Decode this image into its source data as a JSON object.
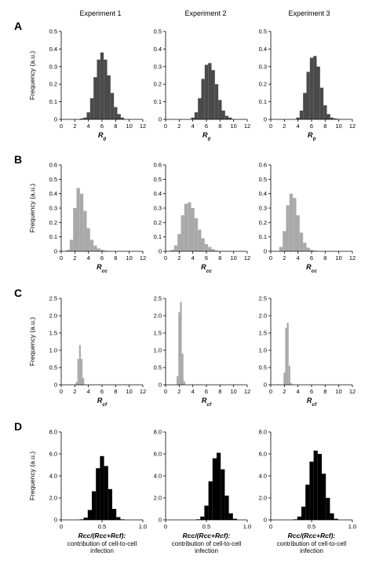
{
  "column_titles": [
    "Experiment 1",
    "Experiment 2",
    "Experiment 3"
  ],
  "colors": {
    "dark_gray": "#4a4a4a",
    "light_gray": "#a9a9a9",
    "black": "#000000",
    "axis": "#000000"
  },
  "rows": [
    {
      "label": "A",
      "ylabel": "Frequency (a.u.)",
      "xlabel_main": "R",
      "xlabel_sub": "0",
      "xlim": [
        0,
        12
      ],
      "ylim": [
        0,
        0.5
      ],
      "xticks": [
        "0",
        "2",
        "4",
        "6",
        "8",
        "10",
        "12"
      ],
      "yticks": [
        "0",
        "0.1",
        "0.2",
        "0.3",
        "0.4",
        "0.5"
      ],
      "color": "dark_gray"
    },
    {
      "label": "B",
      "ylabel": "Frequency (a.u.)",
      "xlabel_main": "R",
      "xlabel_sub": "cc",
      "xlim": [
        0,
        12
      ],
      "ylim": [
        0,
        0.6
      ],
      "xticks": [
        "0",
        "2",
        "4",
        "6",
        "8",
        "10",
        "12"
      ],
      "yticks": [
        "0",
        "0.1",
        "0.2",
        "0.3",
        "0.4",
        "0.5",
        "0.6"
      ],
      "color": "light_gray"
    },
    {
      "label": "C",
      "ylabel": "Frequency (a.u.)",
      "xlabel_main": "R",
      "xlabel_sub": "cf",
      "xlim": [
        0,
        12
      ],
      "ylim": [
        0,
        2.5
      ],
      "xticks": [
        "0",
        "2",
        "4",
        "6",
        "8",
        "10",
        "12"
      ],
      "yticks": [
        "0",
        "0.5",
        "1.0",
        "1.5",
        "2.0",
        "2.5"
      ],
      "color": "light_gray"
    },
    {
      "label": "D",
      "ylabel": "Frequency (a.u.)",
      "xlabel_main": "Rcc/(Rcc+Rcf):",
      "xlabel_line2": "contribution of cell-to-cell",
      "xlabel_line3": "infection",
      "xlim": [
        0,
        1
      ],
      "ylim": [
        0,
        8
      ],
      "xticks": [
        "0",
        "0.5",
        "1.0"
      ],
      "yticks": [
        "0",
        "2.0",
        "4.0",
        "6.0",
        "8.0"
      ],
      "color": "black"
    }
  ],
  "chart_data": [
    {
      "type": "bar",
      "row": "A",
      "experiment": "Experiment 1",
      "x": [
        2.5,
        3.0,
        3.5,
        4.0,
        4.5,
        5.0,
        5.5,
        6.0,
        6.5,
        7.0,
        7.5,
        8.0,
        8.5,
        9.0,
        9.5
      ],
      "values": [
        0.0,
        0.005,
        0.01,
        0.04,
        0.12,
        0.24,
        0.34,
        0.38,
        0.34,
        0.25,
        0.15,
        0.07,
        0.03,
        0.01,
        0.0
      ]
    },
    {
      "type": "bar",
      "row": "A",
      "experiment": "Experiment 2",
      "x": [
        3.5,
        4.0,
        4.5,
        5.0,
        5.5,
        6.0,
        6.5,
        7.0,
        7.5,
        8.0,
        8.5,
        9.0,
        9.5,
        10.0
      ],
      "values": [
        0.0,
        0.01,
        0.04,
        0.12,
        0.23,
        0.31,
        0.32,
        0.28,
        0.2,
        0.11,
        0.05,
        0.02,
        0.01,
        0.0
      ]
    },
    {
      "type": "bar",
      "row": "A",
      "experiment": "Experiment 3",
      "x": [
        3.5,
        4.0,
        4.5,
        5.0,
        5.5,
        6.0,
        6.5,
        7.0,
        7.5,
        8.0,
        8.5,
        9.0,
        9.5,
        10.0
      ],
      "values": [
        0.0,
        0.01,
        0.05,
        0.15,
        0.27,
        0.35,
        0.36,
        0.3,
        0.18,
        0.08,
        0.03,
        0.01,
        0.005,
        0.0
      ]
    },
    {
      "type": "bar",
      "row": "B",
      "experiment": "Experiment 1",
      "x": [
        0.5,
        1.0,
        1.5,
        2.0,
        2.5,
        3.0,
        3.5,
        4.0,
        4.5,
        5.0,
        5.5,
        6.0,
        6.5,
        7.0
      ],
      "values": [
        0.0,
        0.01,
        0.08,
        0.3,
        0.44,
        0.4,
        0.28,
        0.16,
        0.08,
        0.04,
        0.02,
        0.01,
        0.005,
        0.0
      ]
    },
    {
      "type": "bar",
      "row": "B",
      "experiment": "Experiment 2",
      "x": [
        0.5,
        1.0,
        1.5,
        2.0,
        2.5,
        3.0,
        3.5,
        4.0,
        4.5,
        5.0,
        5.5,
        6.0,
        6.5,
        7.0,
        7.5,
        8.0
      ],
      "values": [
        0.0,
        0.01,
        0.04,
        0.12,
        0.25,
        0.33,
        0.34,
        0.3,
        0.23,
        0.15,
        0.09,
        0.05,
        0.03,
        0.015,
        0.005,
        0.0
      ]
    },
    {
      "type": "bar",
      "row": "B",
      "experiment": "Experiment 3",
      "x": [
        1.0,
        1.5,
        2.0,
        2.5,
        3.0,
        3.5,
        4.0,
        4.5,
        5.0,
        5.5,
        6.0,
        6.5,
        7.0
      ],
      "values": [
        0.0,
        0.03,
        0.14,
        0.32,
        0.4,
        0.37,
        0.25,
        0.13,
        0.06,
        0.025,
        0.01,
        0.005,
        0.0
      ]
    },
    {
      "type": "bar",
      "row": "C",
      "experiment": "Experiment 1",
      "x": [
        2.0,
        2.25,
        2.5,
        2.75,
        3.0,
        3.25,
        3.5
      ],
      "values": [
        0.0,
        0.08,
        0.75,
        1.15,
        0.75,
        0.2,
        0.0
      ]
    },
    {
      "type": "bar",
      "row": "C",
      "experiment": "Experiment 2",
      "x": [
        1.5,
        1.75,
        2.0,
        2.25,
        2.5,
        2.75,
        3.0
      ],
      "values": [
        0.0,
        0.25,
        2.1,
        2.4,
        0.9,
        0.1,
        0.0
      ]
    },
    {
      "type": "bar",
      "row": "C",
      "experiment": "Experiment 3",
      "x": [
        1.75,
        2.0,
        2.25,
        2.5,
        2.75,
        3.0,
        3.25
      ],
      "values": [
        0.0,
        0.35,
        1.65,
        1.8,
        0.55,
        0.05,
        0.0
      ]
    },
    {
      "type": "bar",
      "row": "D",
      "experiment": "Experiment 1",
      "x": [
        0.25,
        0.3,
        0.35,
        0.4,
        0.45,
        0.5,
        0.55,
        0.6,
        0.65,
        0.7,
        0.75
      ],
      "values": [
        0.05,
        0.2,
        0.9,
        2.6,
        4.7,
        5.8,
        4.9,
        2.8,
        1.0,
        0.25,
        0.05
      ]
    },
    {
      "type": "bar",
      "row": "D",
      "experiment": "Experiment 2",
      "x": [
        0.4,
        0.45,
        0.5,
        0.55,
        0.6,
        0.65,
        0.7,
        0.75,
        0.8,
        0.85
      ],
      "values": [
        0.05,
        0.3,
        1.3,
        3.5,
        5.6,
        6.1,
        4.6,
        2.2,
        0.6,
        0.1
      ]
    },
    {
      "type": "bar",
      "row": "D",
      "experiment": "Experiment 3",
      "x": [
        0.3,
        0.35,
        0.4,
        0.45,
        0.5,
        0.55,
        0.6,
        0.65,
        0.7,
        0.75,
        0.8
      ],
      "values": [
        0.05,
        0.3,
        1.2,
        3.2,
        5.3,
        6.3,
        6.0,
        4.2,
        2.0,
        0.6,
        0.1
      ]
    }
  ]
}
